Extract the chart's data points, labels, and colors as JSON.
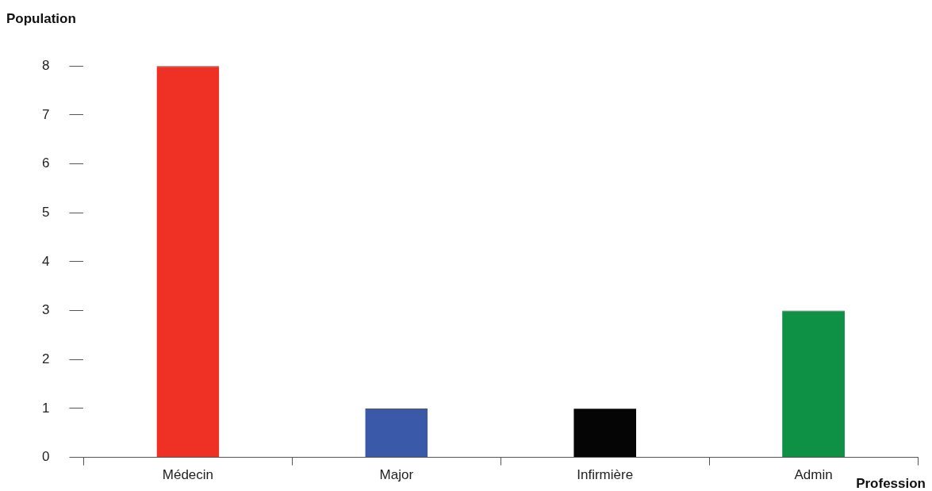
{
  "chart_data": {
    "type": "bar",
    "xlabel": "Profession",
    "ylabel": "Population",
    "categories": [
      "Médecin",
      "Major",
      "Infirmière",
      "Admin"
    ],
    "values": [
      8,
      1,
      1,
      3
    ],
    "colors": [
      "#ee3124",
      "#3a59a8",
      "#050505",
      "#0f9145"
    ],
    "ylim": [
      0,
      8
    ],
    "yticks": [
      0,
      1,
      2,
      3,
      4,
      5,
      6,
      7,
      8
    ],
    "grid": false,
    "legend": false
  }
}
